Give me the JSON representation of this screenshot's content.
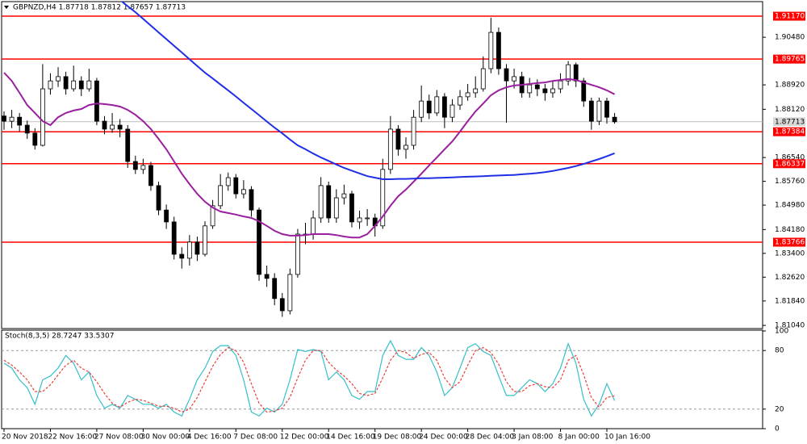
{
  "chart_data": [
    {
      "type": "candlestick",
      "title": "GBPNZD,H4 1.87718 1.87812 1.87657 1.87713",
      "categories": [
        "20 Nov 2018",
        null,
        null,
        null,
        null,
        null,
        "22 Nov 16:00",
        null,
        null,
        null,
        null,
        null,
        "27 Nov 08:00",
        null,
        null,
        null,
        null,
        null,
        "30 Nov 00:00",
        null,
        null,
        null,
        null,
        null,
        "4 Dec 16:00",
        null,
        null,
        null,
        null,
        null,
        "7 Dec 08:00",
        null,
        null,
        null,
        null,
        null,
        "12 Dec 00:00",
        null,
        null,
        null,
        null,
        null,
        "14 Dec 16:00",
        null,
        null,
        null,
        null,
        null,
        "19 Dec 08:00",
        null,
        null,
        null,
        null,
        null,
        "24 Dec 00:00",
        null,
        null,
        null,
        null,
        null,
        "28 Dec 04:00",
        null,
        null,
        null,
        null,
        null,
        "3 Jan 08:00",
        null,
        null,
        null,
        null,
        null,
        "8 Jan 00:00",
        null,
        null,
        null,
        null,
        null,
        "10 Jan 16:00",
        null
      ],
      "open": [
        1.879,
        1.8773,
        1.8786,
        1.876,
        1.8734,
        1.8694,
        1.8879,
        1.8905,
        1.8919,
        1.8879,
        1.8905,
        1.8879,
        1.8905,
        1.8773,
        1.8747,
        1.876,
        1.8747,
        1.8641,
        1.8615,
        1.8628,
        1.8562,
        1.8482,
        1.8443,
        1.8337,
        1.8324,
        1.8377,
        1.8337,
        1.843,
        1.8496,
        1.8562,
        1.8588,
        1.8535,
        1.8549,
        1.8482,
        1.8271,
        1.8258,
        1.8192,
        1.8152,
        1.8271,
        1.8403,
        1.8403,
        1.8456,
        1.8562,
        1.8456,
        1.8522,
        1.8535,
        1.8443,
        1.8456,
        1.8456,
        1.843,
        1.8615,
        1.8747,
        1.8681,
        1.8694,
        1.8786,
        1.8839,
        1.88,
        1.8853,
        1.8786,
        1.8826,
        1.8853,
        1.8866,
        1.8879,
        1.8945,
        1.9064,
        1.8945,
        1.8905,
        1.8919,
        1.8866,
        1.8892,
        1.8879,
        1.8866,
        1.8879,
        1.8905,
        1.8958,
        1.8905,
        1.8839,
        1.8773,
        1.8839,
        1.8786
      ],
      "high": [
        1.8805,
        1.881,
        1.88,
        1.8775,
        1.875,
        1.896,
        1.893,
        1.895,
        1.8935,
        1.8955,
        1.892,
        1.8945,
        1.8915,
        1.879,
        1.88,
        1.878,
        1.876,
        1.866,
        1.865,
        1.864,
        1.8575,
        1.85,
        1.846,
        1.836,
        1.84,
        1.8395,
        1.8445,
        1.8515,
        1.86,
        1.8605,
        1.86,
        1.858,
        1.856,
        1.849,
        1.83,
        1.8275,
        1.821,
        1.829,
        1.842,
        1.844,
        1.848,
        1.859,
        1.8575,
        1.855,
        1.8565,
        1.8545,
        1.848,
        1.8485,
        1.847,
        1.865,
        1.879,
        1.876,
        1.872,
        1.881,
        1.889,
        1.886,
        1.8875,
        1.8865,
        1.8845,
        1.8875,
        1.8895,
        1.892,
        1.8985,
        1.9112,
        1.908,
        1.896,
        1.8945,
        1.8935,
        1.8915,
        1.891,
        1.8895,
        1.8905,
        1.893,
        1.897,
        1.8965,
        1.8915,
        1.885,
        1.885,
        1.885,
        1.88
      ],
      "low": [
        1.8745,
        1.875,
        1.874,
        1.8715,
        1.868,
        1.869,
        1.886,
        1.8885,
        1.886,
        1.887,
        1.8855,
        1.887,
        1.876,
        1.873,
        1.8735,
        1.872,
        1.862,
        1.86,
        1.86,
        1.8545,
        1.8465,
        1.842,
        1.832,
        1.829,
        1.83,
        1.8315,
        1.833,
        1.842,
        1.8485,
        1.8545,
        1.852,
        1.852,
        1.846,
        1.825,
        1.823,
        1.817,
        1.8132,
        1.814,
        1.826,
        1.837,
        1.8385,
        1.844,
        1.844,
        1.844,
        1.85,
        1.8425,
        1.842,
        1.843,
        1.8395,
        1.842,
        1.86,
        1.866,
        1.865,
        1.868,
        1.877,
        1.878,
        1.879,
        1.875,
        1.877,
        1.881,
        1.884,
        1.885,
        1.887,
        1.893,
        1.8925,
        1.8768,
        1.888,
        1.885,
        1.885,
        1.8855,
        1.884,
        1.885,
        1.8865,
        1.889,
        1.8885,
        1.882,
        1.8745,
        1.876,
        1.8765,
        1.8765
      ],
      "close": [
        1.8773,
        1.8786,
        1.876,
        1.8734,
        1.8694,
        1.8879,
        1.8905,
        1.8919,
        1.8879,
        1.8905,
        1.8879,
        1.8905,
        1.8773,
        1.8747,
        1.876,
        1.8747,
        1.8641,
        1.8615,
        1.8628,
        1.8562,
        1.8482,
        1.8443,
        1.8337,
        1.8324,
        1.8377,
        1.8337,
        1.843,
        1.8496,
        1.8562,
        1.8588,
        1.8535,
        1.8549,
        1.8482,
        1.8271,
        1.8258,
        1.8192,
        1.8152,
        1.8271,
        1.8403,
        1.8403,
        1.8456,
        1.8562,
        1.8456,
        1.8522,
        1.8535,
        1.8443,
        1.8456,
        1.8456,
        1.843,
        1.8615,
        1.8747,
        1.8681,
        1.8694,
        1.8786,
        1.8839,
        1.88,
        1.8853,
        1.8786,
        1.8826,
        1.8853,
        1.8866,
        1.8879,
        1.8945,
        1.9064,
        1.8945,
        1.8905,
        1.8919,
        1.8866,
        1.8892,
        1.8879,
        1.8866,
        1.8879,
        1.8905,
        1.8958,
        1.8905,
        1.8839,
        1.8773,
        1.8839,
        1.8786,
        1.8771
      ],
      "series": [
        {
          "color": "#9a1f9e",
          "values": [
            1.8932,
            1.8905,
            1.8866,
            1.8826,
            1.88,
            1.8773,
            1.876,
            1.8786,
            1.88,
            1.8808,
            1.8813,
            1.8826,
            1.8831,
            1.8829,
            1.8826,
            1.8821,
            1.881,
            1.8794,
            1.8773,
            1.8747,
            1.8715,
            1.8681,
            1.8641,
            1.8601,
            1.8567,
            1.8535,
            1.8509,
            1.849,
            1.8477,
            1.8472,
            1.8467,
            1.8461,
            1.8456,
            1.8445,
            1.843,
            1.8414,
            1.8403,
            1.8398,
            1.8398,
            1.84,
            1.8403,
            1.8403,
            1.8403,
            1.84,
            1.8395,
            1.8392,
            1.8392,
            1.8403,
            1.843,
            1.8461,
            1.8496,
            1.8527,
            1.8549,
            1.8575,
            1.8601,
            1.8628,
            1.8654,
            1.8681,
            1.8707,
            1.8739,
            1.8773,
            1.8805,
            1.8831,
            1.8858,
            1.8874,
            1.8884,
            1.889,
            1.8892,
            1.8895,
            1.8898,
            1.89,
            1.8905,
            1.8908,
            1.8911,
            1.8908,
            1.89,
            1.8892,
            1.8884,
            1.8874,
            1.8861
          ]
        },
        {
          "color": "#1f2fe6",
          "values": [
            null,
            null,
            null,
            null,
            null,
            null,
            null,
            null,
            null,
            null,
            null,
            null,
            null,
            null,
            null,
            1.917,
            1.915,
            1.913,
            1.9108,
            1.9086,
            1.9064,
            1.9042,
            1.902,
            1.8998,
            1.8976,
            1.8954,
            1.8932,
            1.8913,
            1.8893,
            1.8874,
            1.8854,
            1.8833,
            1.8813,
            1.8793,
            1.8772,
            1.8752,
            1.8733,
            1.8713,
            1.8694,
            1.8681,
            1.8667,
            1.8654,
            1.8643,
            1.8631,
            1.862,
            1.8611,
            1.8602,
            1.8593,
            1.8588,
            1.8583,
            1.8583,
            1.8584,
            1.8584,
            1.8585,
            1.8586,
            1.8586,
            1.8587,
            1.8588,
            1.8589,
            1.859,
            1.8591,
            1.8592,
            1.8593,
            1.8594,
            1.8595,
            1.8596,
            1.8597,
            1.8599,
            1.8601,
            1.8603,
            1.8606,
            1.861,
            1.8615,
            1.862,
            1.8626,
            1.8633,
            1.8641,
            1.8649,
            1.8658,
            1.8668
          ]
        }
      ],
      "hlines": [
        {
          "value": 1.9117,
          "label": "1.91170"
        },
        {
          "value": 1.89765,
          "label": "1.89765"
        },
        {
          "value": 1.87384,
          "label": "1.87384"
        },
        {
          "value": 1.86337,
          "label": "1.86337"
        },
        {
          "value": 1.83766,
          "label": "1.83766"
        }
      ],
      "hline_color": "#ff0000",
      "current_price": 1.87713,
      "ylim": [
        1.8091,
        1.917
      ],
      "yticks": [
        {
          "value": 1.9048,
          "label": "1.90480"
        },
        {
          "value": 1.8892,
          "label": "1.88920"
        },
        {
          "value": 1.8812,
          "label": "1.88120"
        },
        {
          "value": 1.8654,
          "label": "1.86540"
        },
        {
          "value": 1.8576,
          "label": "1.85760"
        },
        {
          "value": 1.8498,
          "label": "1.84980"
        },
        {
          "value": 1.8418,
          "label": "1.84180"
        },
        {
          "value": 1.834,
          "label": "1.83400"
        },
        {
          "value": 1.8262,
          "label": "1.82620"
        },
        {
          "value": 1.8184,
          "label": "1.81840"
        },
        {
          "value": 1.8104,
          "label": "1.81040"
        }
      ]
    },
    {
      "type": "line",
      "title": "Stoch(8,3,5) 28.7247 33.5307",
      "series": [
        {
          "color": "#35bfc9",
          "dashed": false,
          "values": [
            67,
            62,
            50,
            42,
            25,
            50,
            54,
            62,
            75,
            67,
            50,
            58,
            34,
            21,
            25,
            21,
            34,
            30,
            25,
            25,
            21,
            25,
            17,
            13,
            30,
            50,
            62,
            79,
            85,
            85,
            75,
            50,
            17,
            13,
            21,
            17,
            25,
            50,
            81,
            79,
            81,
            79,
            50,
            58,
            50,
            34,
            30,
            38,
            38,
            75,
            90,
            75,
            71,
            71,
            83,
            75,
            58,
            34,
            42,
            62,
            83,
            87,
            79,
            75,
            54,
            34,
            34,
            42,
            50,
            46,
            38,
            46,
            62,
            87,
            67,
            30,
            13,
            25,
            46,
            28.7247
          ]
        },
        {
          "color": "#e8403a",
          "dashed": true,
          "values": [
            70,
            65,
            58,
            50,
            38,
            38,
            45,
            55,
            65,
            70,
            62,
            58,
            48,
            36,
            26,
            22,
            27,
            30,
            29,
            26,
            23,
            23,
            21,
            17,
            20,
            32,
            48,
            64,
            76,
            83,
            80,
            68,
            46,
            26,
            17,
            18,
            21,
            32,
            52,
            70,
            80,
            80,
            68,
            60,
            54,
            46,
            36,
            34,
            36,
            52,
            70,
            80,
            78,
            72,
            76,
            78,
            70,
            52,
            42,
            48,
            65,
            80,
            83,
            78,
            66,
            48,
            38,
            38,
            44,
            46,
            43,
            42,
            50,
            70,
            75,
            55,
            32,
            22,
            32,
            33.5307
          ]
        }
      ],
      "levels": [
        80,
        20
      ],
      "ylim": [
        0,
        100
      ],
      "yticks": [
        100,
        80,
        20,
        0
      ]
    }
  ]
}
